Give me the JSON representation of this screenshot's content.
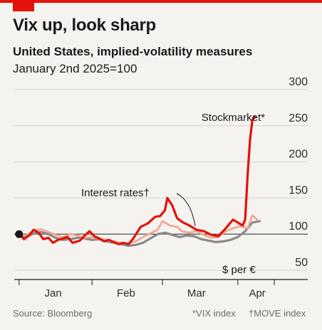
{
  "header": {
    "title": "Vix up, look sharp",
    "subtitle": "United States, implied-volatility measures",
    "subtitle2": "January 2nd 2025=100"
  },
  "footer": {
    "source": "Source: Bloomberg",
    "note_vix": "*VIX index",
    "note_move": "†MOVE index"
  },
  "colors": {
    "accent": "#e3120b",
    "stock": "#e3120b",
    "rates": "#f4a48e",
    "fx": "#8a8a8a"
  },
  "chart_data": {
    "type": "line",
    "ylim": [
      50,
      300
    ],
    "yticks": [
      "300",
      "250",
      "200",
      "150",
      "100",
      "50"
    ],
    "baseline": 100,
    "x_ticks": [
      {
        "day": 14,
        "label": "Jan"
      },
      {
        "day": 44,
        "label": "Feb"
      },
      {
        "day": 73,
        "label": "Mar"
      },
      {
        "day": 98,
        "label": "Apr"
      }
    ],
    "x_range_days": [
      -2,
      105
    ],
    "x_axis_minor_ticks": [
      0,
      30,
      59,
      90
    ],
    "start_marker": {
      "day": 0,
      "value": 100
    },
    "series": [
      {
        "name": "$ per €",
        "color_key": "fx",
        "values": [
          [
            0,
            98
          ],
          [
            3,
            96
          ],
          [
            6,
            101
          ],
          [
            9,
            103
          ],
          [
            12,
            100
          ],
          [
            15,
            95
          ],
          [
            18,
            92
          ],
          [
            21,
            93
          ],
          [
            24,
            95
          ],
          [
            27,
            94
          ],
          [
            30,
            92
          ],
          [
            33,
            93
          ],
          [
            36,
            90
          ],
          [
            39,
            88
          ],
          [
            42,
            86
          ],
          [
            45,
            84
          ],
          [
            48,
            85
          ],
          [
            51,
            88
          ],
          [
            54,
            94
          ],
          [
            57,
            100
          ],
          [
            60,
            102
          ],
          [
            63,
            99
          ],
          [
            66,
            96
          ],
          [
            69,
            98
          ],
          [
            72,
            97
          ],
          [
            75,
            93
          ],
          [
            78,
            91
          ],
          [
            81,
            89
          ],
          [
            84,
            90
          ],
          [
            87,
            92
          ],
          [
            90,
            96
          ],
          [
            93,
            104
          ],
          [
            96,
            116
          ],
          [
            99,
            118
          ]
        ]
      },
      {
        "name": "Interest rates",
        "color_key": "rates",
        "values": [
          [
            0,
            100
          ],
          [
            3,
            98
          ],
          [
            6,
            105
          ],
          [
            9,
            107
          ],
          [
            12,
            103
          ],
          [
            15,
            99
          ],
          [
            18,
            96
          ],
          [
            21,
            100
          ],
          [
            24,
            98
          ],
          [
            27,
            95
          ],
          [
            30,
            96
          ],
          [
            33,
            94
          ],
          [
            36,
            92
          ],
          [
            39,
            90
          ],
          [
            42,
            88
          ],
          [
            45,
            87
          ],
          [
            48,
            90
          ],
          [
            51,
            96
          ],
          [
            54,
            101
          ],
          [
            57,
            106
          ],
          [
            59,
            118
          ],
          [
            62,
            112
          ],
          [
            65,
            110
          ],
          [
            67,
            104
          ],
          [
            70,
            102
          ],
          [
            73,
            104
          ],
          [
            76,
            99
          ],
          [
            79,
            95
          ],
          [
            82,
            96
          ],
          [
            85,
            104
          ],
          [
            88,
            108
          ],
          [
            91,
            111
          ],
          [
            94,
            108
          ],
          [
            96,
            126
          ],
          [
            98,
            120
          ]
        ]
      },
      {
        "name": "Stockmarket",
        "color_key": "stock",
        "values": [
          [
            0,
            100
          ],
          [
            2,
            93
          ],
          [
            4,
            98
          ],
          [
            6,
            106
          ],
          [
            8,
            102
          ],
          [
            10,
            93
          ],
          [
            12,
            95
          ],
          [
            14,
            88
          ],
          [
            16,
            92
          ],
          [
            18,
            94
          ],
          [
            20,
            96
          ],
          [
            22,
            88
          ],
          [
            25,
            91
          ],
          [
            27,
            98
          ],
          [
            29,
            104
          ],
          [
            31,
            97
          ],
          [
            33,
            94
          ],
          [
            35,
            90
          ],
          [
            37,
            92
          ],
          [
            39,
            89
          ],
          [
            41,
            86
          ],
          [
            43,
            88
          ],
          [
            45,
            86
          ],
          [
            47,
            94
          ],
          [
            50,
            110
          ],
          [
            53,
            115
          ],
          [
            56,
            124
          ],
          [
            58,
            125
          ],
          [
            60,
            133
          ],
          [
            61,
            150
          ],
          [
            63,
            140
          ],
          [
            65,
            122
          ],
          [
            67,
            117
          ],
          [
            70,
            112
          ],
          [
            73,
            106
          ],
          [
            76,
            104
          ],
          [
            79,
            99
          ],
          [
            82,
            97
          ],
          [
            85,
            108
          ],
          [
            88,
            120
          ],
          [
            90,
            116
          ],
          [
            92,
            112
          ],
          [
            93,
            120
          ],
          [
            94,
            180
          ],
          [
            95,
            230
          ],
          [
            96,
            258
          ],
          [
            97,
            262
          ]
        ]
      }
    ],
    "labels": {
      "stock": "Stockmarket*",
      "rates": "Interest rates†",
      "fx": "$ per €"
    }
  }
}
